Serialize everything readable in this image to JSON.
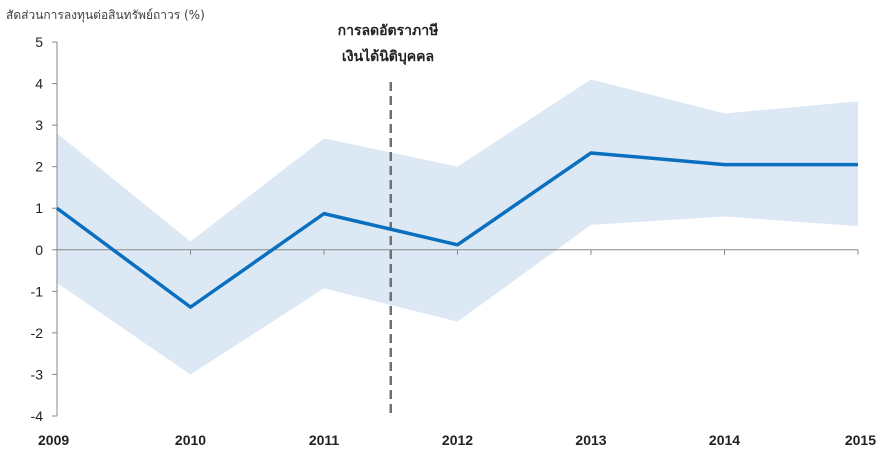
{
  "chart_data": {
    "type": "line",
    "ylabel": "สัดส่วนการลงทุนต่อสินทรัพย์ถาวร (%)",
    "xlabel": "",
    "x": [
      "2009",
      "2010",
      "2011",
      "2012",
      "2013",
      "2014",
      "2015"
    ],
    "ylim": [
      -4,
      5
    ],
    "yticks": [
      "5",
      "4",
      "3",
      "2",
      "1",
      "0",
      "-1",
      "-2",
      "-3",
      "-4"
    ],
    "series": [
      {
        "values": [
          1.0,
          -1.38,
          0.87,
          0.12,
          2.33,
          2.05,
          2.05
        ]
      }
    ],
    "band": {
      "upper": [
        2.8,
        0.2,
        2.68,
        2.0,
        4.1,
        3.28,
        3.57
      ],
      "lower": [
        -0.8,
        -3.0,
        -0.93,
        -1.73,
        0.6,
        0.8,
        0.57
      ]
    },
    "annotation": {
      "line1": "การลดอัตราภาษี",
      "line2": "เงินได้นิติบุคคล",
      "x_position": 2011.5
    },
    "colors": {
      "line": "#0a6fbf",
      "band": "#dde8f5",
      "event_line": "#707070"
    }
  }
}
